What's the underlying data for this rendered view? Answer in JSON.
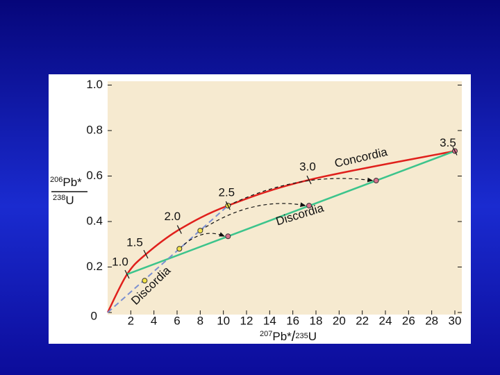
{
  "chart_data": {
    "type": "line",
    "y_label": {
      "sup": "206",
      "main": "Pb*",
      "den_sup": "238",
      "den_main": "U"
    },
    "x_label": {
      "sup": "207",
      "main": "Pb*",
      "slash": "/",
      "den_sup": "235",
      "den_main": "U"
    },
    "xlim": [
      0,
      30
    ],
    "ylim": [
      0,
      1
    ],
    "xticks": [
      2,
      4,
      6,
      8,
      10,
      12,
      14,
      16,
      18,
      20,
      22,
      24,
      26,
      28,
      30
    ],
    "yticks": [
      0,
      0.2,
      0.4,
      0.6,
      0.8,
      {
        "value": 1,
        "label": "1.0"
      }
    ],
    "series": [
      {
        "name": "Concordia",
        "color": "#e0201c",
        "style": "solid",
        "x": [
          0,
          1.68,
          3.3,
          6.2,
          10.4,
          17.4,
          30
        ],
        "values": [
          0,
          0.168,
          0.256,
          0.365,
          0.47,
          0.583,
          0.71
        ]
      },
      {
        "name": "Discordia",
        "color": "#3cc48c",
        "style": "solid",
        "x": [
          1.68,
          30
        ],
        "values": [
          0.168,
          0.71
        ]
      },
      {
        "name": "Discordia",
        "color": "#7b8fd0",
        "style": "dashed",
        "x": [
          0,
          10.4
        ],
        "values": [
          0,
          0.47
        ]
      }
    ],
    "markers": [
      {
        "color": "#f2e24a",
        "x": [
          3.2,
          6.2,
          8,
          10.4
        ],
        "values": [
          0.14,
          0.28,
          0.36,
          0.47
        ]
      },
      {
        "color": "#d9708c",
        "x": [
          10.4,
          17.4,
          23.2,
          30
        ],
        "values": [
          0.335,
          0.47,
          0.58,
          0.71
        ]
      }
    ],
    "ages": [
      {
        "label": "1.0",
        "x": 1.68,
        "y": 0.168
      },
      {
        "label": "1.5",
        "x": 3.3,
        "y": 0.256
      },
      {
        "label": "2.0",
        "x": 6.2,
        "y": 0.365
      },
      {
        "label": "2.5",
        "x": 10.4,
        "y": 0.47
      },
      {
        "label": "3.0",
        "x": 17.4,
        "y": 0.583
      },
      {
        "label": "3.5",
        "x": 30,
        "y": 0.71
      }
    ]
  }
}
